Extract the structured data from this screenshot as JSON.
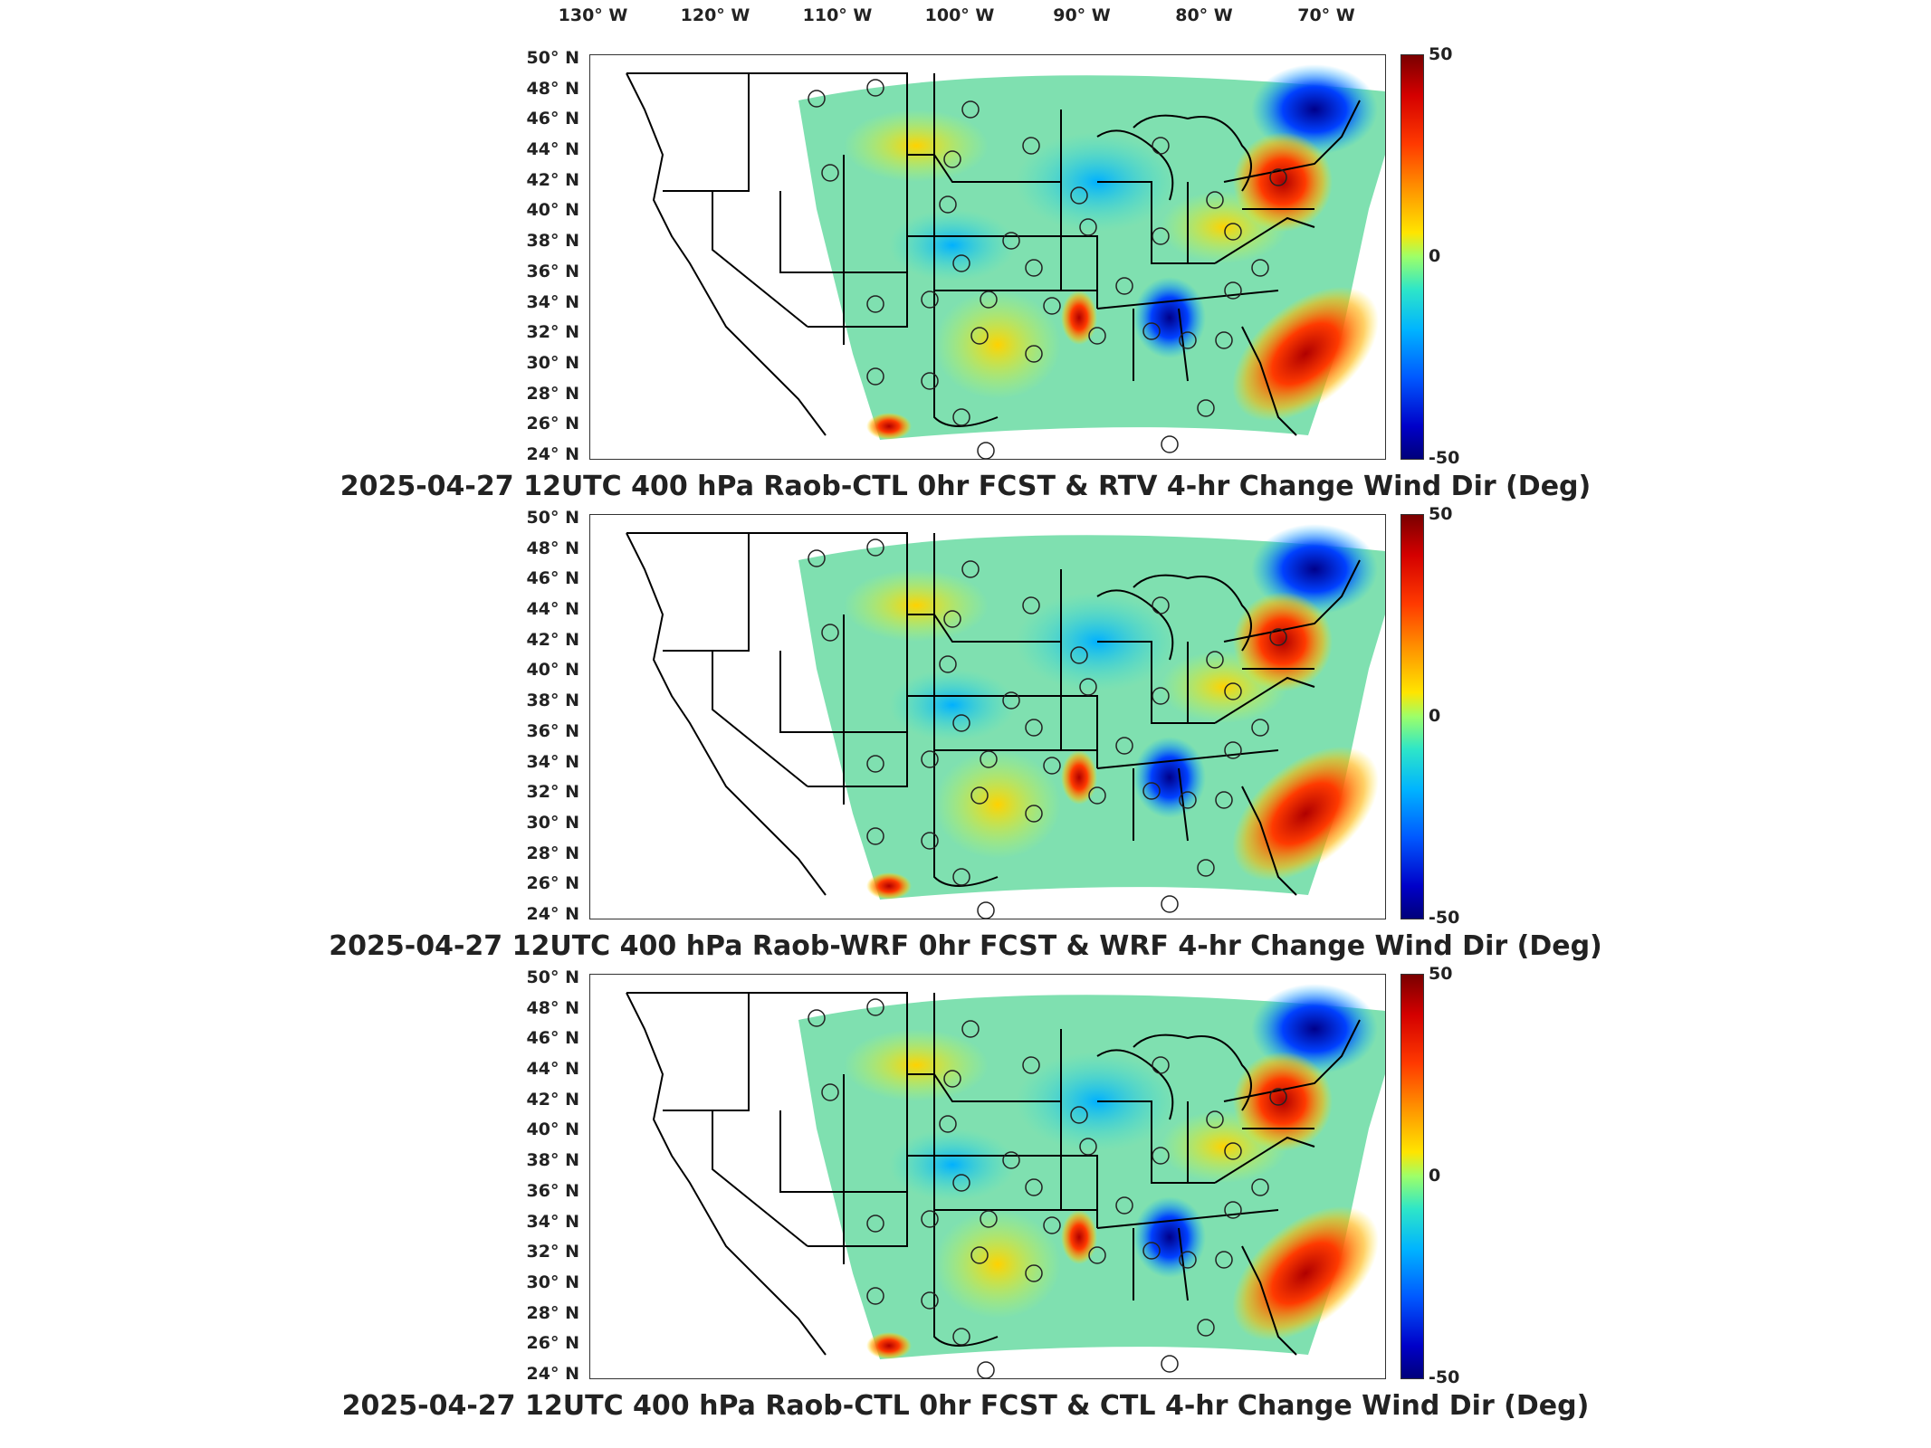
{
  "longitude_labels": [
    "130° W",
    "120° W",
    "110° W",
    "100° W",
    "90° W",
    "80° W",
    "70° W"
  ],
  "latitude_labels": [
    "50° N",
    "48° N",
    "46° N",
    "44° N",
    "42° N",
    "40° N",
    "38° N",
    "36° N",
    "34° N",
    "32° N",
    "30° N",
    "28° N",
    "26° N",
    "24° N"
  ],
  "colorbar": {
    "max": "50",
    "mid": "0",
    "min": "-50"
  },
  "panels": [
    {
      "title": "2025-04-27 12UTC 400 hPa Raob-CTL 0hr FCST & RTV 4-hr Change Wind Dir (Deg)"
    },
    {
      "title": "2025-04-27 12UTC 400 hPa Raob-WRF 0hr FCST & WRF 4-hr Change Wind Dir (Deg)"
    },
    {
      "title": "2025-04-27 12UTC 400 hPa Raob-CTL 0hr FCST & CTL 4-hr Change Wind Dir (Deg)"
    }
  ],
  "colors": {
    "positive_max": "#7a0000",
    "neutral": "#9cff6a",
    "negative_min": "#00007a",
    "background_field": "#7fe0b0"
  }
}
